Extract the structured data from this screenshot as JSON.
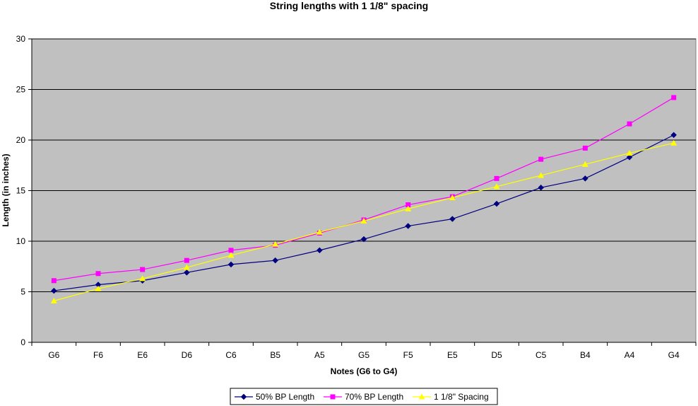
{
  "chart_data": {
    "type": "line",
    "title": "String lengths with  1 1/8\" spacing",
    "xlabel": "Notes (G6 to G4)",
    "ylabel": "Length (in inches)",
    "ylim": [
      0,
      30
    ],
    "yticks": [
      0,
      5,
      10,
      15,
      20,
      25,
      30
    ],
    "grid": true,
    "legend_position": "bottom",
    "plot_background": "#C0C0C0",
    "categories": [
      "G6",
      "F6",
      "E6",
      "D6",
      "C6",
      "B5",
      "A5",
      "G5",
      "F5",
      "E5",
      "D5",
      "C5",
      "B4",
      "A4",
      "G4"
    ],
    "series": [
      {
        "name": "50% BP Length",
        "color": "#000080",
        "marker": "diamond",
        "values": [
          5.1,
          5.7,
          6.1,
          6.9,
          7.7,
          8.1,
          9.1,
          10.2,
          11.5,
          12.2,
          13.7,
          15.3,
          16.2,
          18.3,
          20.5
        ]
      },
      {
        "name": "70% BP Length",
        "color": "#FF00FF",
        "marker": "square",
        "values": [
          6.1,
          6.8,
          7.2,
          8.1,
          9.1,
          9.6,
          10.8,
          12.1,
          13.6,
          14.4,
          16.2,
          18.1,
          19.2,
          21.6,
          24.2
        ]
      },
      {
        "name": "1 1/8\" Spacing",
        "color": "#FFFF00",
        "marker": "triangle",
        "values": [
          4.1,
          5.3,
          6.3,
          7.4,
          8.6,
          9.7,
          10.9,
          12.0,
          13.2,
          14.3,
          15.4,
          16.5,
          17.6,
          18.7,
          19.7
        ]
      }
    ]
  }
}
